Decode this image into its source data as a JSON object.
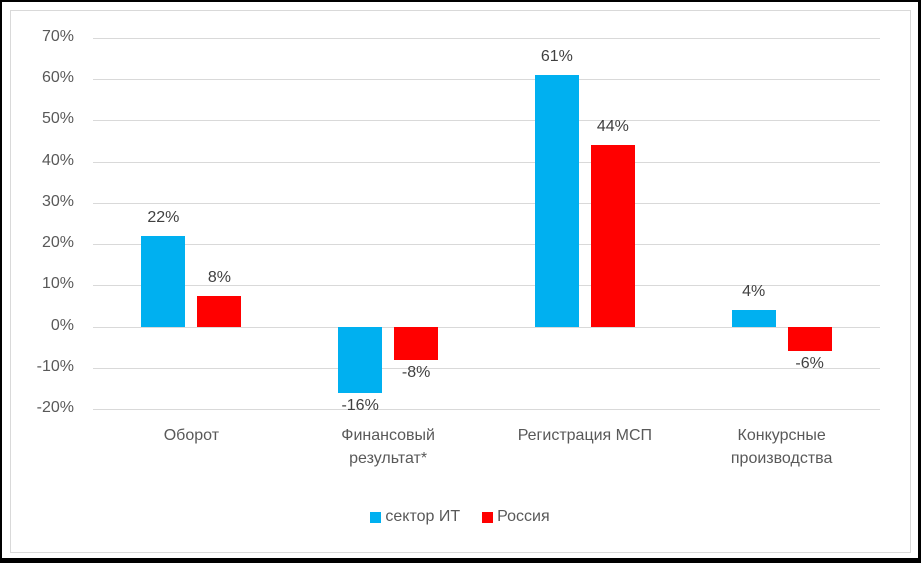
{
  "chart_data": {
    "type": "bar",
    "title": "",
    "xlabel": "",
    "ylabel": "",
    "ylim": [
      -0.2,
      0.7
    ],
    "yticks": [
      "70%",
      "60%",
      "50%",
      "40%",
      "30%",
      "20%",
      "10%",
      "0%",
      "-10%",
      "-20%"
    ],
    "grid": true,
    "legend_position": "bottom",
    "categories": [
      "Оборот",
      "Финансовый результат*",
      "Регистрация МСП",
      "Конкурсные производства"
    ],
    "category_lines": [
      [
        "Оборот"
      ],
      [
        "Финансовый",
        "результат*"
      ],
      [
        "Регистрация МСП"
      ],
      [
        "Конкурсные",
        "производства"
      ]
    ],
    "series": [
      {
        "name": "сектор ИТ",
        "color": "#00b0f0",
        "values": [
          0.22,
          -0.16,
          0.61,
          0.04
        ],
        "labels": [
          "22%",
          "-16%",
          "61%",
          "4%"
        ]
      },
      {
        "name": "Россия",
        "color": "#ff0000",
        "values": [
          0.075,
          -0.08,
          0.44,
          -0.06
        ],
        "labels": [
          "8%",
          "-8%",
          "44%",
          "-6%"
        ]
      }
    ]
  },
  "legend": [
    {
      "label": "сектор ИТ",
      "color": "#00b0f0"
    },
    {
      "label": "Россия",
      "color": "#ff0000"
    }
  ]
}
